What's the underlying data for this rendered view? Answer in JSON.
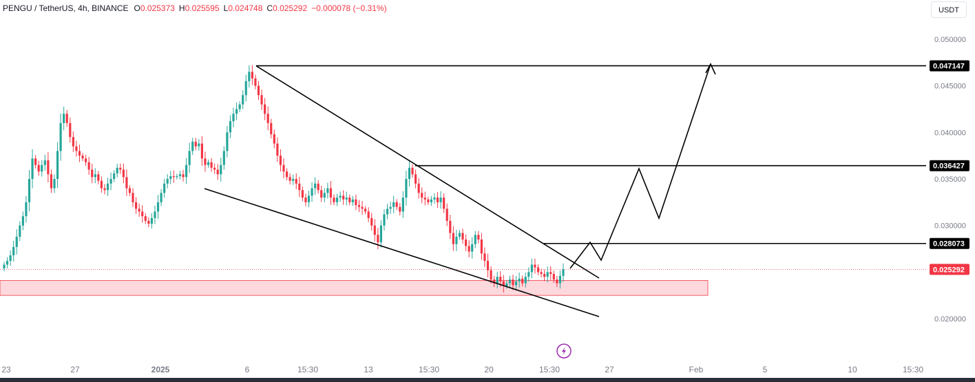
{
  "legend": {
    "symbol": "PENGU / TetherUS, 4h, BINANCE",
    "open_label": "O",
    "open": "0.025373",
    "high_label": "H",
    "high": "0.025595",
    "low_label": "L",
    "low": "0.024748",
    "close_label": "C",
    "close": "0.025292",
    "change": "−0.000078 (−0.31%)"
  },
  "currency_button": "USDT",
  "colors": {
    "up": "#26a69a",
    "down": "#f23645",
    "line": "#000000",
    "zone_fill": "#fdd8dc",
    "zone_stroke": "#f23645",
    "text": "#131722",
    "axis_text": "#787b86"
  },
  "icons": {
    "replay": "lightning-icon"
  },
  "chart_data": {
    "type": "candlestick",
    "symbol": "PENGU/USDT",
    "timeframe": "4h",
    "ylim": [
      0.0185,
      0.0515
    ],
    "y_ticks": [
      "0.050000",
      "0.045000",
      "0.040000",
      "0.035000",
      "0.030000",
      "0.025000",
      "0.020000"
    ],
    "x_ticks": [
      "23",
      "27",
      "2025",
      "6",
      "15:30",
      "13",
      "15:30",
      "20",
      "15:30",
      "27",
      "Feb",
      "5",
      "10",
      "15:30"
    ],
    "price_labels": [
      {
        "value": "0.047147",
        "style": "dark"
      },
      {
        "value": "0.036427",
        "style": "dark"
      },
      {
        "value": "0.028073",
        "style": "dark"
      },
      {
        "value": "0.025292",
        "style": "red"
      }
    ],
    "last_price": 0.025292,
    "support_zone": {
      "low": 0.0225,
      "high": 0.0241
    },
    "horizontal_levels": [
      0.047147,
      0.036427,
      0.028073
    ],
    "pattern": "falling wedge",
    "candle_closes": [
      0.0258,
      0.0262,
      0.0268,
      0.0277,
      0.0288,
      0.03,
      0.031,
      0.0325,
      0.035,
      0.0372,
      0.0365,
      0.0358,
      0.0365,
      0.037,
      0.0355,
      0.034,
      0.035,
      0.038,
      0.041,
      0.042,
      0.041,
      0.0395,
      0.0385,
      0.038,
      0.0375,
      0.0372,
      0.0368,
      0.036,
      0.0352,
      0.0355,
      0.0348,
      0.034,
      0.0338,
      0.0345,
      0.035,
      0.0356,
      0.0362,
      0.036,
      0.0352,
      0.034,
      0.0335,
      0.0325,
      0.0318,
      0.0315,
      0.031,
      0.0305,
      0.0302,
      0.0308,
      0.0315,
      0.0325,
      0.0335,
      0.0345,
      0.035,
      0.0353,
      0.0352,
      0.0353,
      0.0355,
      0.0352,
      0.0365,
      0.038,
      0.039,
      0.0385,
      0.0388,
      0.0372,
      0.0365,
      0.0368,
      0.0362,
      0.036,
      0.0355,
      0.0365,
      0.038,
      0.04,
      0.0412,
      0.042,
      0.0425,
      0.043,
      0.044,
      0.0455,
      0.0465,
      0.0458,
      0.045,
      0.044,
      0.043,
      0.042,
      0.041,
      0.0398,
      0.0388,
      0.0375,
      0.0365,
      0.0358,
      0.0352,
      0.0348,
      0.035,
      0.0345,
      0.0338,
      0.033,
      0.0325,
      0.0332,
      0.034,
      0.0345,
      0.0338,
      0.033,
      0.0335,
      0.034,
      0.033,
      0.0325,
      0.033,
      0.0332,
      0.0328,
      0.033,
      0.0325,
      0.0328,
      0.0322,
      0.032,
      0.0318,
      0.0315,
      0.0308,
      0.03,
      0.029,
      0.0282,
      0.03,
      0.0312,
      0.0318,
      0.032,
      0.0325,
      0.032,
      0.0315,
      0.033,
      0.035,
      0.0362,
      0.0355,
      0.0345,
      0.0335,
      0.033,
      0.0328,
      0.0325,
      0.0328,
      0.033,
      0.0325,
      0.033,
      0.0318,
      0.0305,
      0.0292,
      0.028,
      0.0288,
      0.0292,
      0.0285,
      0.0278,
      0.0272,
      0.028,
      0.029,
      0.0285,
      0.027,
      0.0262,
      0.0252,
      0.0242,
      0.0238,
      0.0245,
      0.024,
      0.0235,
      0.0238,
      0.0242,
      0.0236,
      0.024,
      0.0243,
      0.0238,
      0.0245,
      0.025,
      0.0258,
      0.0255,
      0.025,
      0.0248,
      0.0245,
      0.025,
      0.0248,
      0.0242,
      0.0238,
      0.0246,
      0.0253
    ]
  }
}
